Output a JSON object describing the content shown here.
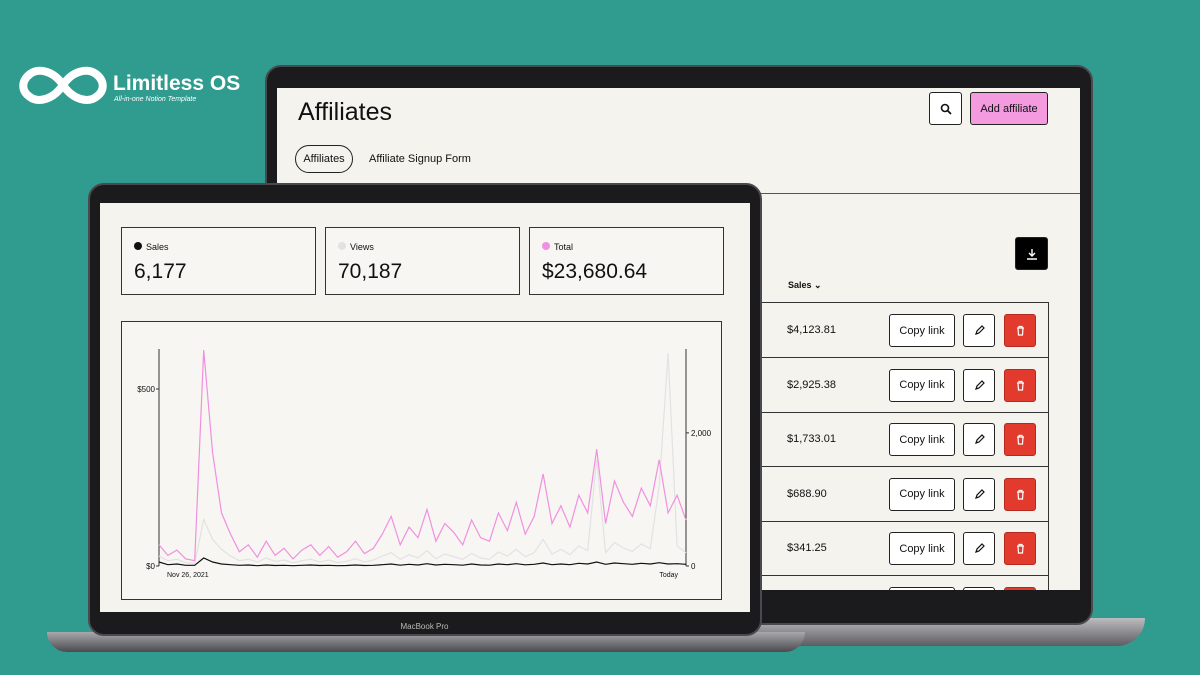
{
  "brand": {
    "name": "Limitless OS",
    "tagline": "All-in-one Notion Template"
  },
  "back_screen": {
    "title": "Affiliates",
    "add_button": "Add affiliate",
    "tabs": [
      "Affiliates",
      "Affiliate Signup Form"
    ],
    "sales_header": "Sales",
    "copy_link": "Copy link",
    "rows": [
      "$4,123.81",
      "$2,925.38",
      "$1,733.01",
      "$688.90",
      "$341.25"
    ]
  },
  "front_screen": {
    "stats": [
      {
        "label": "Sales",
        "value": "6,177",
        "color": "#111111"
      },
      {
        "label": "Views",
        "value": "70,187",
        "color": "#e2e2e2"
      },
      {
        "label": "Total",
        "value": "$23,680.64",
        "color": "#f18fe0"
      }
    ],
    "chart": {
      "type": "line",
      "categories": [
        "Nov 26, 2021",
        null,
        null,
        null,
        null,
        null,
        null,
        null,
        null,
        null,
        null,
        null,
        null,
        null,
        null,
        null,
        null,
        null,
        null,
        null,
        null,
        null,
        null,
        null,
        null,
        null,
        null,
        null,
        null,
        null,
        null,
        null,
        null,
        null,
        null,
        null,
        null,
        null,
        null,
        null,
        null,
        null,
        null,
        null,
        null,
        null,
        null,
        null,
        null,
        null,
        null,
        null,
        null,
        null,
        null,
        null,
        null,
        null,
        null,
        "Today"
      ],
      "ylim": [
        0,
        613
      ],
      "yticks": [
        {
          "value": 0,
          "label": "$0"
        },
        {
          "value": 500,
          "label": "$500"
        }
      ],
      "y2lim": [
        0,
        3260
      ],
      "y2ticks": [
        0,
        {
          "value": 2000,
          "label": "2,000"
        }
      ],
      "series": [
        {
          "name": "Views",
          "color": "#e2e2e2",
          "axis": "y2",
          "values": [
            150,
            80,
            100,
            50,
            40,
            700,
            400,
            250,
            150,
            80,
            100,
            60,
            120,
            70,
            90,
            50,
            80,
            100,
            60,
            90,
            50,
            70,
            110,
            60,
            90,
            150,
            200,
            100,
            170,
            120,
            230,
            110,
            180,
            140,
            100,
            190,
            120,
            100,
            210,
            150,
            250,
            140,
            200,
            400,
            180,
            250,
            170,
            300,
            230,
            1600,
            200,
            350,
            270,
            220,
            330,
            260,
            1200,
            3200,
            300,
            200
          ]
        },
        {
          "name": "Sales",
          "color": "#111111",
          "axis": "y2",
          "values": [
            60,
            20,
            30,
            10,
            10,
            120,
            60,
            30,
            20,
            10,
            15,
            5,
            15,
            8,
            10,
            5,
            10,
            15,
            8,
            10,
            5,
            8,
            15,
            8,
            10,
            20,
            30,
            12,
            25,
            15,
            35,
            15,
            25,
            20,
            12,
            30,
            15,
            12,
            30,
            20,
            35,
            18,
            25,
            45,
            20,
            30,
            20,
            40,
            30,
            60,
            25,
            45,
            35,
            25,
            40,
            30,
            50,
            30,
            35,
            25
          ]
        },
        {
          "name": "Total",
          "color": "#f18fe0",
          "values": [
            60,
            30,
            45,
            20,
            15,
            610,
            320,
            150,
            90,
            40,
            60,
            25,
            70,
            30,
            50,
            20,
            45,
            60,
            30,
            55,
            25,
            40,
            70,
            35,
            50,
            90,
            140,
            60,
            110,
            80,
            160,
            70,
            120,
            95,
            60,
            130,
            80,
            70,
            150,
            100,
            180,
            90,
            140,
            260,
            120,
            170,
            110,
            200,
            150,
            330,
            120,
            240,
            180,
            140,
            220,
            170,
            300,
            150,
            200,
            130
          ]
        }
      ]
    }
  },
  "laptop_label": "MacBook Pro"
}
